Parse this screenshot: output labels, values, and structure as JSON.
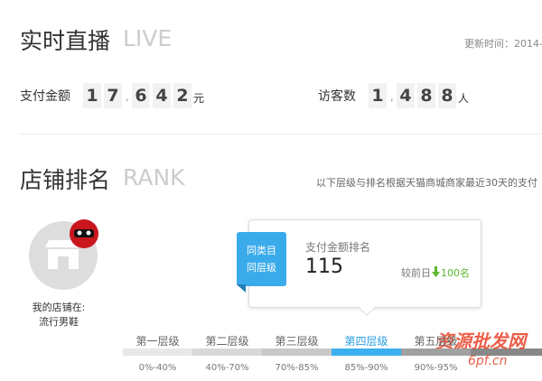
{
  "live": {
    "title": "实时直播",
    "title_en": "LIVE",
    "update_time": "更新时间：2014-",
    "amount": {
      "label": "支付金额",
      "digits": [
        "1",
        "7",
        ",",
        "6",
        "4",
        "2"
      ],
      "unit": "元"
    },
    "visitors": {
      "label": "访客数",
      "digits": [
        "1",
        ",",
        "4",
        "8",
        "8"
      ],
      "unit": "人"
    }
  },
  "rank": {
    "title": "店铺排名",
    "title_en": "RANK",
    "note": "以下层级与排名根据天猫商城商家最近30天的支付",
    "shop": {
      "caption": "我的店铺在:",
      "category": "流行男鞋"
    },
    "card": {
      "badge": [
        "同类目",
        "同层级"
      ],
      "label": "支付金额排名",
      "value": "115",
      "compare_label": "较前日",
      "compare_value": "100名"
    },
    "levels": [
      {
        "name": "第一层级",
        "range": "0%-40%"
      },
      {
        "name": "第二层级",
        "range": "40%-70%"
      },
      {
        "name": "第三层级",
        "range": "70%-85%"
      },
      {
        "name": "第四层级",
        "range": "85%-90%"
      },
      {
        "name": "第五层级",
        "range": "90%-95%"
      }
    ]
  },
  "watermark": {
    "text": "资源批发网",
    "url": "6pf.cn"
  }
}
